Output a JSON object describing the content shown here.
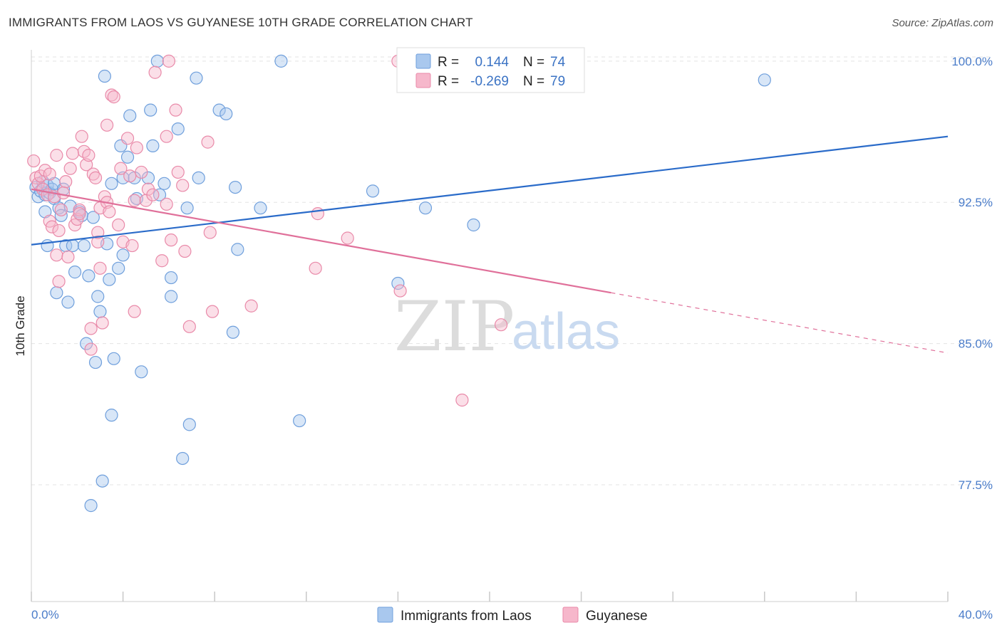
{
  "header": {
    "title": "IMMIGRANTS FROM LAOS VS GUYANESE 10TH GRADE CORRELATION CHART",
    "source": "Source: ZipAtlas.com"
  },
  "watermark": {
    "zip": "ZIP",
    "atlas": "atlas"
  },
  "legend": {
    "rows": [
      {
        "r_label": "R =",
        "r_value": "0.144",
        "n_label": "N =",
        "n_value": "74"
      },
      {
        "r_label": "R =",
        "r_value": "-0.269",
        "n_label": "N =",
        "n_value": "79"
      }
    ]
  },
  "bottom_legend": [
    "Immigrants from Laos",
    "Guyanese"
  ],
  "colors": {
    "laos_fill": "#a9c8ee",
    "laos_stroke": "#6f9fdc",
    "laos_line": "#2a6bc9",
    "guy_fill": "#f6b7cb",
    "guy_stroke": "#e98aa9",
    "guy_line": "#e0709a",
    "grid": "#e3e3e3",
    "tick_text": "#4a7cc9"
  },
  "chart_data": {
    "type": "scatter",
    "title": "IMMIGRANTS FROM LAOS VS GUYANESE 10TH GRADE CORRELATION CHART",
    "xlabel": "",
    "ylabel": "10th Grade",
    "xlim": [
      0,
      40
    ],
    "ylim": [
      71.3,
      100.6
    ],
    "x_tick_labels": [
      "0.0%",
      "40.0%"
    ],
    "y_ticks": [
      77.5,
      85.0,
      92.5,
      100.0
    ],
    "y_tick_labels": [
      "77.5%",
      "85.0%",
      "92.5%",
      "100.0%"
    ],
    "grid": true,
    "legend_position": "top-center",
    "series": [
      {
        "name": "Immigrants from Laos",
        "r": 0.144,
        "n": 74,
        "trend": {
          "x": [
            0,
            40
          ],
          "y": [
            90.25,
            96.0
          ]
        },
        "points": [
          [
            0.2,
            93.3
          ],
          [
            0.3,
            92.8
          ],
          [
            0.4,
            93.1
          ],
          [
            0.5,
            93.6
          ],
          [
            0.6,
            92.9
          ],
          [
            0.7,
            93.4
          ],
          [
            0.8,
            93.0
          ],
          [
            0.9,
            93.2
          ],
          [
            0.6,
            92.0
          ],
          [
            0.7,
            90.2
          ],
          [
            1.0,
            93.5
          ],
          [
            1.0,
            92.7
          ],
          [
            1.2,
            92.2
          ],
          [
            1.3,
            91.8
          ],
          [
            1.4,
            93.2
          ],
          [
            1.1,
            87.7
          ],
          [
            1.5,
            90.2
          ],
          [
            1.7,
            92.3
          ],
          [
            1.8,
            90.2
          ],
          [
            1.6,
            87.2
          ],
          [
            1.9,
            88.8
          ],
          [
            2.1,
            92.0
          ],
          [
            2.2,
            91.8
          ],
          [
            2.3,
            90.2
          ],
          [
            2.5,
            88.6
          ],
          [
            2.7,
            91.7
          ],
          [
            2.8,
            84.0
          ],
          [
            2.9,
            87.5
          ],
          [
            3.0,
            86.7
          ],
          [
            2.4,
            85.0
          ],
          [
            3.2,
            99.2
          ],
          [
            3.3,
            90.3
          ],
          [
            3.4,
            88.4
          ],
          [
            3.5,
            81.2
          ],
          [
            3.6,
            84.2
          ],
          [
            3.8,
            89.0
          ],
          [
            3.5,
            93.5
          ],
          [
            3.9,
            95.5
          ],
          [
            4.0,
            93.8
          ],
          [
            4.0,
            89.7
          ],
          [
            4.2,
            94.9
          ],
          [
            4.3,
            97.1
          ],
          [
            4.5,
            93.8
          ],
          [
            4.6,
            92.7
          ],
          [
            4.8,
            83.5
          ],
          [
            5.1,
            93.8
          ],
          [
            5.2,
            97.4
          ],
          [
            5.3,
            95.5
          ],
          [
            5.5,
            100.0
          ],
          [
            5.6,
            92.9
          ],
          [
            5.8,
            93.5
          ],
          [
            6.1,
            88.5
          ],
          [
            6.1,
            87.5
          ],
          [
            6.4,
            96.4
          ],
          [
            6.6,
            78.9
          ],
          [
            6.8,
            92.2
          ],
          [
            6.9,
            80.7
          ],
          [
            7.2,
            99.1
          ],
          [
            7.3,
            93.8
          ],
          [
            8.2,
            97.4
          ],
          [
            8.5,
            97.2
          ],
          [
            8.8,
            85.6
          ],
          [
            8.9,
            93.3
          ],
          [
            9.0,
            90.0
          ],
          [
            10.0,
            92.2
          ],
          [
            10.9,
            100.0
          ],
          [
            11.7,
            80.9
          ],
          [
            14.9,
            93.1
          ],
          [
            16.0,
            88.2
          ],
          [
            17.2,
            92.2
          ],
          [
            19.3,
            91.3
          ],
          [
            32.0,
            99.0
          ],
          [
            3.1,
            77.7
          ],
          [
            2.6,
            76.4
          ]
        ]
      },
      {
        "name": "Guyanese",
        "r": -0.269,
        "n": 79,
        "trend": {
          "x": [
            0,
            25.3
          ],
          "y": [
            93.2,
            87.7
          ]
        },
        "trend_dashed": {
          "x": [
            25.3,
            40
          ],
          "y": [
            87.7,
            84.5
          ]
        },
        "points": [
          [
            0.1,
            94.7
          ],
          [
            0.2,
            93.8
          ],
          [
            0.3,
            93.5
          ],
          [
            0.4,
            93.9
          ],
          [
            0.5,
            93.2
          ],
          [
            0.6,
            94.2
          ],
          [
            0.7,
            92.9
          ],
          [
            0.8,
            91.5
          ],
          [
            0.9,
            91.2
          ],
          [
            1.0,
            92.8
          ],
          [
            1.1,
            95.0
          ],
          [
            1.1,
            89.7
          ],
          [
            1.2,
            91.0
          ],
          [
            1.3,
            92.1
          ],
          [
            1.5,
            93.6
          ],
          [
            1.6,
            89.6
          ],
          [
            1.7,
            94.3
          ],
          [
            1.8,
            95.1
          ],
          [
            1.9,
            91.3
          ],
          [
            2.0,
            91.6
          ],
          [
            2.1,
            92.1
          ],
          [
            2.2,
            96.0
          ],
          [
            2.3,
            95.2
          ],
          [
            2.4,
            94.5
          ],
          [
            2.5,
            95.0
          ],
          [
            2.6,
            85.8
          ],
          [
            2.7,
            94.0
          ],
          [
            2.8,
            93.8
          ],
          [
            2.9,
            90.4
          ],
          [
            3.0,
            92.2
          ],
          [
            3.1,
            86.1
          ],
          [
            3.2,
            92.8
          ],
          [
            3.3,
            92.5
          ],
          [
            3.4,
            92.0
          ],
          [
            3.5,
            98.2
          ],
          [
            3.6,
            98.1
          ],
          [
            3.8,
            91.3
          ],
          [
            3.9,
            94.3
          ],
          [
            4.0,
            90.4
          ],
          [
            4.2,
            95.9
          ],
          [
            4.3,
            93.9
          ],
          [
            4.4,
            90.2
          ],
          [
            4.5,
            92.6
          ],
          [
            4.6,
            95.4
          ],
          [
            4.8,
            94.1
          ],
          [
            5.0,
            92.6
          ],
          [
            5.1,
            93.2
          ],
          [
            5.3,
            92.9
          ],
          [
            5.4,
            99.4
          ],
          [
            5.7,
            89.4
          ],
          [
            5.9,
            96.0
          ],
          [
            6.0,
            100.0
          ],
          [
            6.1,
            90.5
          ],
          [
            6.3,
            97.4
          ],
          [
            6.4,
            94.1
          ],
          [
            6.6,
            93.4
          ],
          [
            6.7,
            89.9
          ],
          [
            6.9,
            85.9
          ],
          [
            7.7,
            95.7
          ],
          [
            7.8,
            90.9
          ],
          [
            7.9,
            86.7
          ],
          [
            9.6,
            87.0
          ],
          [
            12.4,
            89.0
          ],
          [
            12.5,
            91.9
          ],
          [
            13.8,
            90.6
          ],
          [
            16.0,
            100.0
          ],
          [
            16.1,
            87.8
          ],
          [
            18.8,
            82.0
          ],
          [
            20.5,
            86.0
          ],
          [
            3.3,
            96.6
          ],
          [
            4.5,
            86.7
          ],
          [
            2.6,
            84.7
          ],
          [
            1.2,
            88.3
          ],
          [
            3.0,
            89.0
          ],
          [
            2.1,
            91.9
          ],
          [
            0.8,
            94.0
          ],
          [
            1.4,
            93.0
          ],
          [
            5.9,
            92.4
          ],
          [
            2.9,
            90.9
          ]
        ]
      }
    ]
  }
}
